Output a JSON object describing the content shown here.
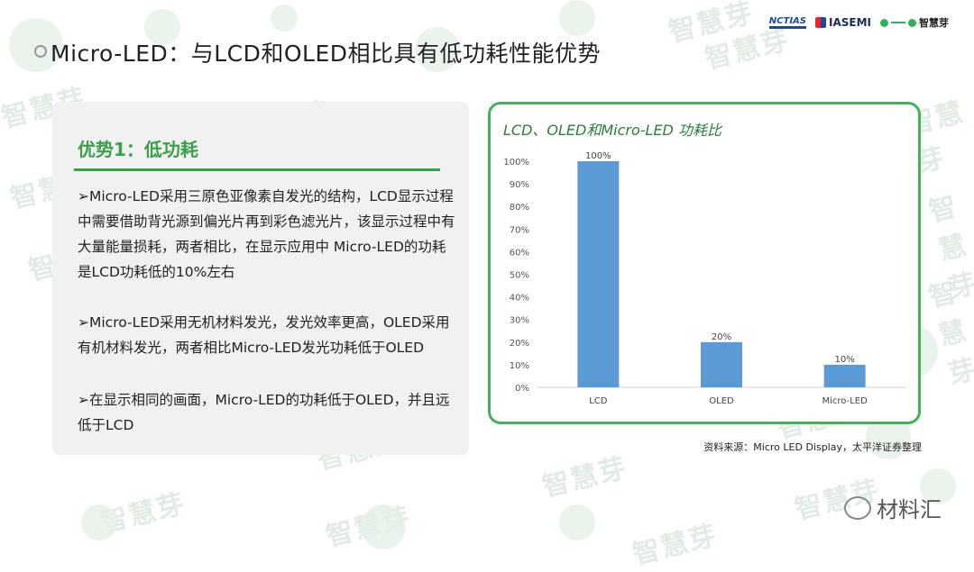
{
  "header": {
    "title": "Micro-LED：与LCD和OLED相比具有低功耗性能优势",
    "logos": [
      "NCTIAS",
      "IASEMI",
      "智慧芽"
    ]
  },
  "watermark": {
    "text": "智慧芽"
  },
  "left_panel": {
    "heading": "优势1：低功耗",
    "paragraphs": [
      "➢Micro-LED采用三原色亚像素自发光的结构，LCD显示过程中需要借助背光源到偏光片再到彩色滤光片，该显示过程中有大量能量损耗，两者相比，在显示应用中 Micro-LED的功耗是LCD功耗低的10%左右",
      "➢Micro-LED采用无机材料发光，发光效率更高，OLED采用有机材料发光，两者相比Micro-LED发光功耗低于OLED",
      "➢在显示相同的画面，Micro-LED的功耗低于OLED，并且远低于LCD"
    ]
  },
  "chart_data": {
    "type": "bar",
    "title": "LCD、OLED和Micro-LED 功耗比",
    "categories": [
      "LCD",
      "OLED",
      "Micro-LED"
    ],
    "values": [
      100,
      20,
      10
    ],
    "data_labels": [
      "100%",
      "20%",
      "10%"
    ],
    "yticks": [
      "0%",
      "10%",
      "20%",
      "30%",
      "40%",
      "50%",
      "60%",
      "70%",
      "80%",
      "90%",
      "100%"
    ],
    "ylim": [
      0,
      100
    ],
    "bar_color": "#5b9bd5",
    "grid": false,
    "legend": "none"
  },
  "source": "资料来源：Micro LED Display，太平洋证券整理",
  "footer": {
    "brand": "材料汇"
  }
}
